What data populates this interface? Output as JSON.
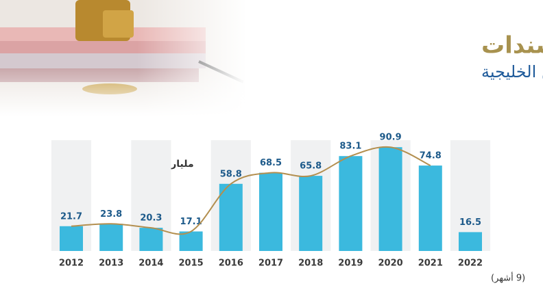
{
  "chart_data": {
    "type": "bar",
    "title": "إصدارات السندات",
    "subtitle": "في سوق الدين الخليجية",
    "unit_label": "مليار دولار",
    "note": "(9 أشهر)",
    "categories": [
      "2012",
      "2013",
      "2014",
      "2015",
      "2016",
      "2017",
      "2018",
      "2019",
      "2020",
      "2021",
      "2022"
    ],
    "values": [
      21.7,
      23.8,
      20.3,
      17.1,
      58.8,
      68.5,
      65.8,
      83.1,
      90.9,
      74.8,
      16.5
    ],
    "color": "#3bb9de",
    "line_color": "#b38f4f"
  }
}
